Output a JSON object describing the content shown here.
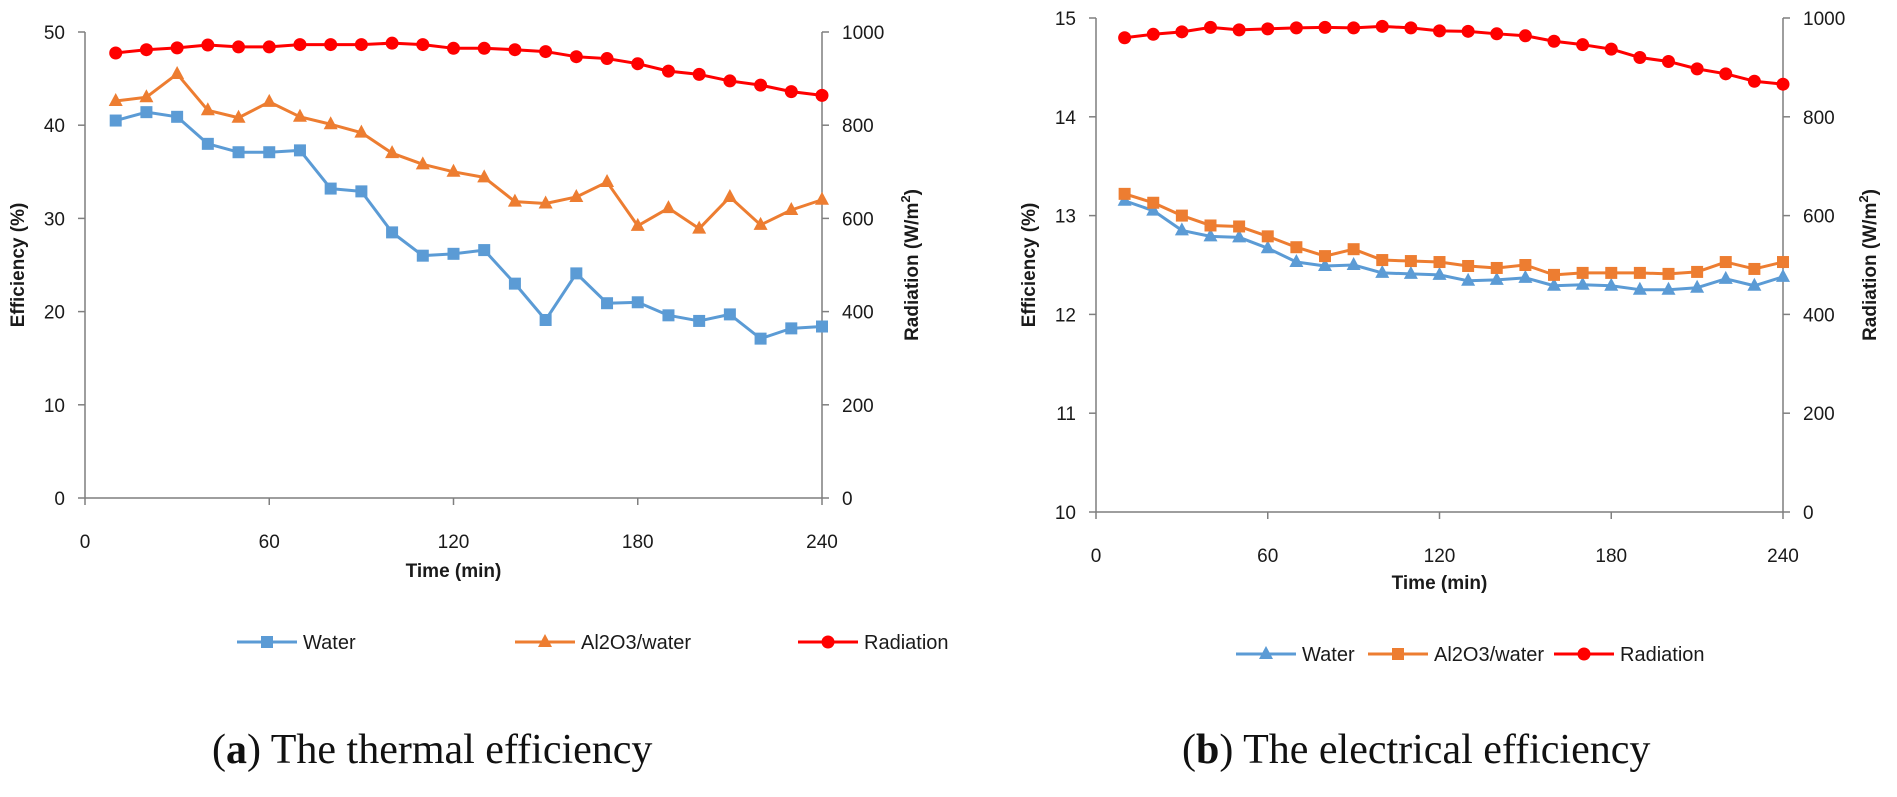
{
  "colors": {
    "water": "#5b9bd5",
    "al2o3": "#ed7d31",
    "radiation": "#ff0000",
    "axis": "#7f7f7f",
    "text": "#1a1a1a"
  },
  "chart_data": [
    {
      "type": "line",
      "caption_letter": "a",
      "caption_text": ") The thermal efficiency",
      "caption_open": "(",
      "xlabel": "Time (min)",
      "ylabel": "Efficiency (%)",
      "y2label": "Radiation (W/m",
      "y2label_sup": "2",
      "y2label_close": ")",
      "xlim": [
        0,
        240
      ],
      "ylim": [
        0,
        50
      ],
      "y2lim": [
        0,
        1000
      ],
      "x_ticks": [
        "0",
        "60",
        "120",
        "180",
        "240"
      ],
      "y_ticks": [
        "0",
        "10",
        "20",
        "30",
        "40",
        "50"
      ],
      "y2_ticks": [
        "0",
        "200",
        "400",
        "600",
        "800",
        "1000"
      ],
      "x": [
        10,
        20,
        30,
        40,
        50,
        60,
        70,
        80,
        90,
        100,
        110,
        120,
        130,
        140,
        150,
        160,
        170,
        180,
        190,
        200,
        210,
        220,
        230,
        240
      ],
      "series": [
        {
          "name": "Water",
          "marker": "square",
          "axis": "left",
          "values": [
            40.5,
            41.4,
            40.9,
            38.0,
            37.1,
            37.1,
            37.3,
            33.2,
            32.9,
            28.5,
            26.0,
            26.2,
            26.6,
            23.0,
            19.1,
            24.1,
            20.9,
            21.0,
            19.6,
            19.0,
            19.7,
            17.1,
            18.2,
            18.4
          ]
        },
        {
          "name": "Al2O3/water",
          "marker": "triangle",
          "axis": "left",
          "values": [
            42.6,
            43.0,
            45.5,
            41.6,
            40.8,
            42.5,
            40.9,
            40.1,
            39.2,
            37.0,
            35.8,
            35.0,
            34.4,
            31.8,
            31.6,
            32.3,
            33.9,
            29.2,
            31.1,
            28.9,
            32.3,
            29.3,
            30.9,
            32.0
          ]
        },
        {
          "name": "Radiation",
          "marker": "circle",
          "axis": "right",
          "values": [
            955,
            962,
            966,
            972,
            968,
            968,
            973,
            973,
            973,
            976,
            973,
            965,
            965,
            962,
            958,
            947,
            943,
            932,
            916,
            909,
            895,
            886,
            872,
            864
          ]
        }
      ]
    },
    {
      "type": "line",
      "caption_letter": "b",
      "caption_text": ") The electrical efficiency",
      "caption_open": "(",
      "xlabel": "Time (min)",
      "ylabel": "Efficiency (%)",
      "y2label": "Radiation (W/m",
      "y2label_sup": "2",
      "y2label_close": ")",
      "xlim": [
        0,
        240
      ],
      "ylim": [
        10,
        15
      ],
      "y2lim": [
        0,
        1000
      ],
      "x_ticks": [
        "0",
        "60",
        "120",
        "180",
        "240"
      ],
      "y_ticks": [
        "10",
        "11",
        "12",
        "13",
        "14",
        "15"
      ],
      "y2_ticks": [
        "0",
        "200",
        "400",
        "600",
        "800",
        "1000"
      ],
      "x": [
        10,
        20,
        30,
        40,
        50,
        60,
        70,
        80,
        90,
        100,
        110,
        120,
        130,
        140,
        150,
        160,
        170,
        180,
        190,
        200,
        210,
        220,
        230,
        240
      ],
      "series": [
        {
          "name": "Water",
          "marker": "triangle",
          "axis": "left",
          "values": [
            13.15,
            13.05,
            12.85,
            12.79,
            12.78,
            12.67,
            12.53,
            12.49,
            12.5,
            12.42,
            12.41,
            12.4,
            12.34,
            12.35,
            12.37,
            12.29,
            12.3,
            12.29,
            12.25,
            12.25,
            12.27,
            12.36,
            12.29,
            12.38
          ]
        },
        {
          "name": "Al2O3/water",
          "marker": "square",
          "axis": "left",
          "values": [
            13.22,
            13.13,
            13.0,
            12.9,
            12.89,
            12.79,
            12.68,
            12.59,
            12.66,
            12.55,
            12.54,
            12.53,
            12.49,
            12.47,
            12.5,
            12.4,
            12.42,
            12.42,
            12.42,
            12.41,
            12.43,
            12.53,
            12.46,
            12.53
          ]
        },
        {
          "name": "Radiation",
          "marker": "circle",
          "axis": "right",
          "values": [
            960,
            967,
            972,
            981,
            976,
            978,
            980,
            981,
            980,
            983,
            980,
            974,
            973,
            968,
            964,
            953,
            946,
            937,
            920,
            912,
            897,
            887,
            872,
            866
          ]
        }
      ]
    }
  ]
}
